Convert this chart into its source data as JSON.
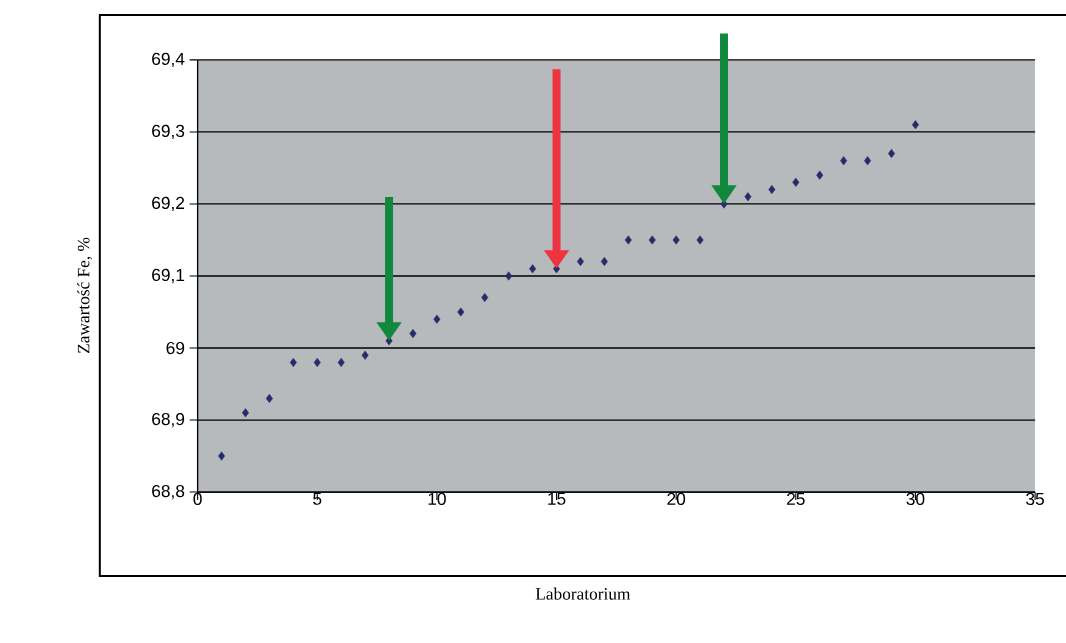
{
  "chart_data": {
    "type": "scatter",
    "xlabel": "Laboratorium",
    "ylabel": "Zawartość Fe, %",
    "x": [
      1,
      2,
      3,
      4,
      5,
      6,
      7,
      8,
      9,
      10,
      11,
      12,
      13,
      14,
      15,
      16,
      17,
      18,
      19,
      20,
      21,
      22,
      23,
      24,
      25,
      26,
      27,
      28,
      29,
      30
    ],
    "values": [
      68.85,
      68.91,
      68.93,
      68.98,
      68.98,
      68.98,
      68.99,
      69.01,
      69.02,
      69.04,
      69.05,
      69.07,
      69.1,
      69.11,
      69.11,
      69.12,
      69.12,
      69.15,
      69.15,
      69.15,
      69.15,
      69.2,
      69.21,
      69.22,
      69.23,
      69.24,
      69.26,
      69.26,
      69.27,
      69.31
    ],
    "color": "#252b6b",
    "marker": "diamond",
    "xlim": [
      0,
      35
    ],
    "xticks": [
      0,
      5,
      10,
      15,
      20,
      25,
      30,
      35
    ],
    "ylim": [
      68.8,
      69.4
    ],
    "yticks": [
      {
        "value": 68.8,
        "label": "68,8"
      },
      {
        "value": 68.9,
        "label": "68,9"
      },
      69,
      {
        "value": 69.1,
        "label": "69,1"
      },
      {
        "value": 69.2,
        "label": "69,2"
      },
      {
        "value": 69.3,
        "label": "69,3"
      },
      {
        "value": 69.4,
        "label": "69,4"
      }
    ],
    "grid": "y"
  }
}
